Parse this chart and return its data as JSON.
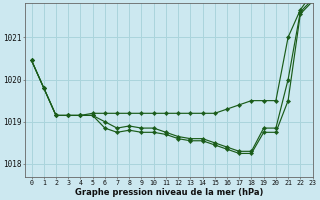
{
  "title": "Graphe pression niveau de la mer (hPa)",
  "background_color": "#cce8f0",
  "grid_color": "#aad4dc",
  "line_color": "#1a5c1a",
  "xlim": [
    -0.5,
    23
  ],
  "ylim": [
    1017.7,
    1021.8
  ],
  "yticks": [
    1018,
    1019,
    1020,
    1021
  ],
  "xticks": [
    0,
    1,
    2,
    3,
    4,
    5,
    6,
    7,
    8,
    9,
    10,
    11,
    12,
    13,
    14,
    15,
    16,
    17,
    18,
    19,
    20,
    21,
    22,
    23
  ],
  "lines": [
    {
      "x": [
        0,
        1,
        2,
        3,
        4,
        5,
        6,
        7,
        8,
        9,
        10,
        11,
        12,
        13,
        14,
        15,
        16,
        17,
        18,
        19,
        20,
        21,
        22,
        23
      ],
      "y": [
        1020.45,
        1019.8,
        1019.15,
        1019.15,
        1019.15,
        1019.2,
        1019.2,
        1019.2,
        1019.2,
        1019.2,
        1019.2,
        1019.2,
        1019.2,
        1019.2,
        1019.2,
        1019.2,
        1019.3,
        1019.4,
        1019.5,
        1019.5,
        1019.5,
        1021.0,
        1021.65,
        1022.05
      ]
    },
    {
      "x": [
        0,
        1,
        2,
        3,
        4,
        5,
        6,
        7,
        8,
        9,
        10,
        11,
        12,
        13,
        14,
        15,
        16,
        17,
        18,
        19,
        20,
        21,
        22,
        23
      ],
      "y": [
        1020.45,
        1019.8,
        1019.15,
        1019.15,
        1019.15,
        1019.15,
        1018.85,
        1018.75,
        1018.8,
        1018.75,
        1018.75,
        1018.7,
        1018.6,
        1018.55,
        1018.55,
        1018.45,
        1018.35,
        1018.25,
        1018.25,
        1018.75,
        1018.75,
        1019.5,
        1021.55,
        1021.85
      ]
    },
    {
      "x": [
        0,
        1,
        2,
        3,
        4,
        5,
        6,
        7,
        8,
        9,
        10,
        11,
        12,
        13,
        14,
        15,
        16,
        17,
        18,
        19,
        20,
        21,
        22,
        23
      ],
      "y": [
        1020.45,
        1019.8,
        1019.15,
        1019.15,
        1019.15,
        1019.15,
        1019.0,
        1018.85,
        1018.9,
        1018.85,
        1018.85,
        1018.75,
        1018.65,
        1018.6,
        1018.6,
        1018.5,
        1018.4,
        1018.3,
        1018.3,
        1018.85,
        1018.85,
        1020.0,
        1021.6,
        1021.9
      ]
    }
  ]
}
